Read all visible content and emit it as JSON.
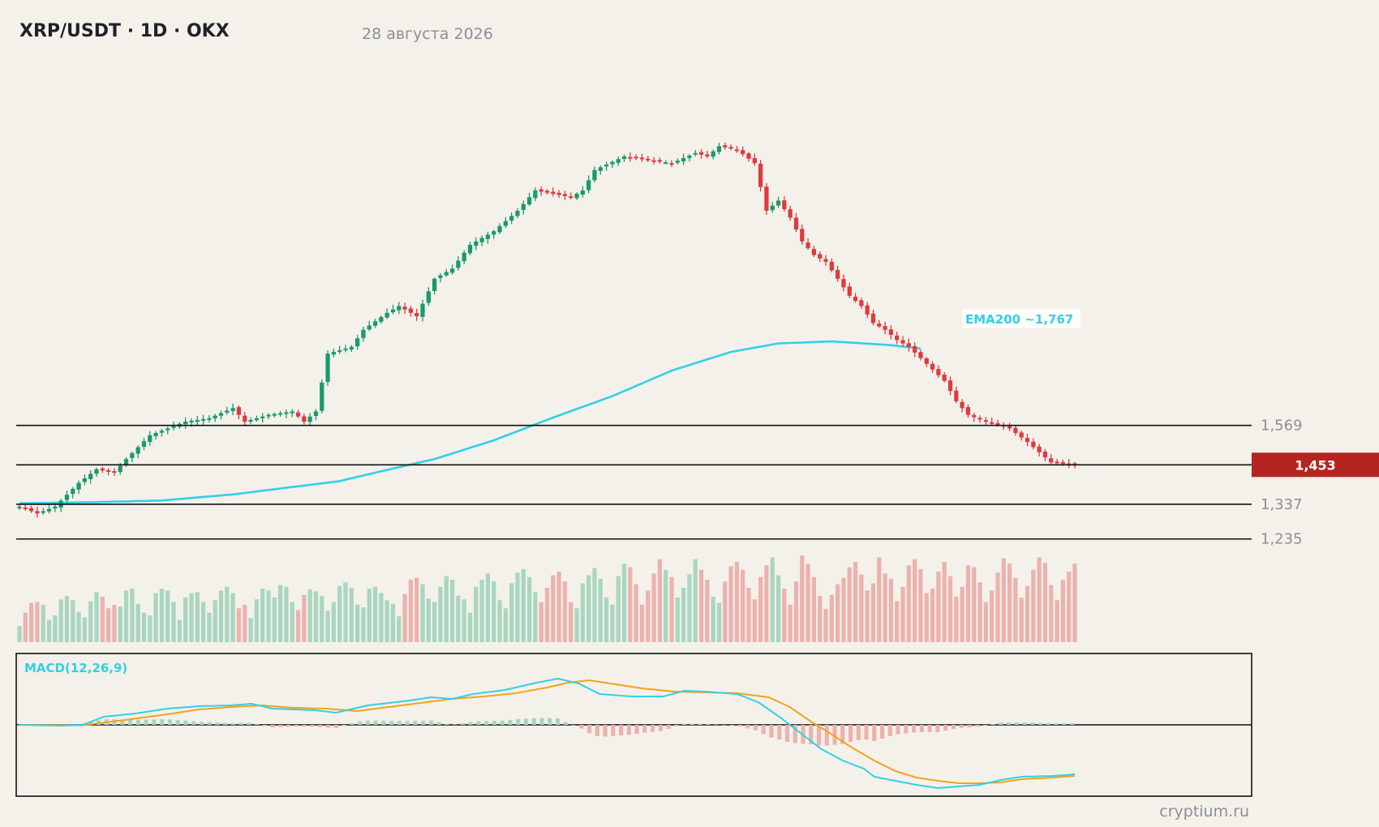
{
  "header": {
    "title": "XRP/USDT · 1D · OKX",
    "date": "28 августа 2026"
  },
  "footer": {
    "watermark": "cryptium.ru"
  },
  "colors": {
    "background": "#f4f1ea",
    "up": "#1a9a6c",
    "down": "#dd3b3f",
    "volume_up": "#a9d6c1",
    "volume_down": "#ecb2ae",
    "ema": "#33cfe6",
    "macd_line": "#33cfe6",
    "signal_line": "#f5a21b",
    "level_line": "#111111",
    "price_badge": "#b5241f"
  },
  "chart_data": {
    "type": "candlestick",
    "symbol": "XRP/USDT",
    "timeframe": "1D",
    "exchange": "OKX",
    "grid": false,
    "y_range": [
      1.17,
      2.51
    ],
    "horizontal_levels": [
      {
        "value": 1.569,
        "label": "1,569"
      },
      {
        "value": 1.453,
        "label": "1,453",
        "current_price": true
      },
      {
        "value": 1.337,
        "label": "1,337"
      },
      {
        "value": 1.235,
        "label": "1,235"
      }
    ],
    "ema": {
      "label": "EMA200 ~1,767",
      "points": [
        [
          0,
          1.34
        ],
        [
          12,
          1.343
        ],
        [
          24,
          1.348
        ],
        [
          36,
          1.366
        ],
        [
          48,
          1.392
        ],
        [
          54,
          1.405
        ],
        [
          60,
          1.43
        ],
        [
          70,
          1.47
        ],
        [
          80,
          1.525
        ],
        [
          90,
          1.592
        ],
        [
          100,
          1.655
        ],
        [
          110,
          1.73
        ],
        [
          120,
          1.785
        ],
        [
          128,
          1.81
        ],
        [
          137,
          1.816
        ],
        [
          147,
          1.805
        ],
        [
          152,
          1.795
        ]
      ]
    },
    "close_path": [
      [
        0,
        1.33
      ],
      [
        3,
        1.31
      ],
      [
        6,
        1.33
      ],
      [
        10,
        1.4
      ],
      [
        13,
        1.44
      ],
      [
        16,
        1.43
      ],
      [
        18,
        1.47
      ],
      [
        22,
        1.54
      ],
      [
        28,
        1.58
      ],
      [
        32,
        1.59
      ],
      [
        36,
        1.62
      ],
      [
        38,
        1.58
      ],
      [
        42,
        1.6
      ],
      [
        46,
        1.61
      ],
      [
        48,
        1.58
      ],
      [
        50,
        1.61
      ],
      [
        52,
        1.78
      ],
      [
        56,
        1.8
      ],
      [
        58,
        1.85
      ],
      [
        62,
        1.9
      ],
      [
        64,
        1.92
      ],
      [
        67,
        1.89
      ],
      [
        70,
        2.0
      ],
      [
        73,
        2.03
      ],
      [
        76,
        2.1
      ],
      [
        80,
        2.14
      ],
      [
        84,
        2.2
      ],
      [
        87,
        2.26
      ],
      [
        90,
        2.25
      ],
      [
        93,
        2.24
      ],
      [
        95,
        2.26
      ],
      [
        97,
        2.32
      ],
      [
        102,
        2.36
      ],
      [
        106,
        2.35
      ],
      [
        110,
        2.34
      ],
      [
        114,
        2.37
      ],
      [
        116,
        2.36
      ],
      [
        118,
        2.39
      ],
      [
        121,
        2.38
      ],
      [
        124,
        2.34
      ],
      [
        126,
        2.2
      ],
      [
        128,
        2.23
      ],
      [
        130,
        2.18
      ],
      [
        132,
        2.11
      ],
      [
        134,
        2.07
      ],
      [
        136,
        2.05
      ],
      [
        138,
        2.0
      ],
      [
        140,
        1.95
      ],
      [
        142,
        1.92
      ],
      [
        144,
        1.87
      ],
      [
        146,
        1.85
      ],
      [
        148,
        1.82
      ],
      [
        150,
        1.8
      ],
      [
        153,
        1.75
      ],
      [
        156,
        1.7
      ],
      [
        158,
        1.64
      ],
      [
        160,
        1.6
      ],
      [
        163,
        1.58
      ],
      [
        165,
        1.57
      ],
      [
        167,
        1.56
      ],
      [
        170,
        1.52
      ],
      [
        174,
        1.46
      ],
      [
        178,
        1.455
      ]
    ],
    "volume_levels": [
      0.18,
      0.33,
      0.44,
      0.45,
      0.42,
      0.25,
      0.3,
      0.48,
      0.52,
      0.47,
      0.34,
      0.28,
      0.46,
      0.56,
      0.51,
      0.38,
      0.42,
      0.4,
      0.58,
      0.6,
      0.43,
      0.33,
      0.3,
      0.55,
      0.6,
      0.58,
      0.45,
      0.25,
      0.5,
      0.55,
      0.56,
      0.45,
      0.33,
      0.47,
      0.58,
      0.62,
      0.55,
      0.38,
      0.42,
      0.27,
      0.48,
      0.6,
      0.58,
      0.5,
      0.64,
      0.62,
      0.45,
      0.36,
      0.53,
      0.59,
      0.57,
      0.52,
      0.35,
      0.45,
      0.63,
      0.67,
      0.61,
      0.42,
      0.39,
      0.6,
      0.62,
      0.55,
      0.47,
      0.43,
      0.29,
      0.54,
      0.7,
      0.72,
      0.65,
      0.49,
      0.45,
      0.62,
      0.74,
      0.7,
      0.52,
      0.48,
      0.33,
      0.62,
      0.7,
      0.77,
      0.68,
      0.47,
      0.38,
      0.66,
      0.78,
      0.82,
      0.73,
      0.56,
      0.45,
      0.61,
      0.75,
      0.79,
      0.68,
      0.45,
      0.38,
      0.66,
      0.75,
      0.83,
      0.71,
      0.5,
      0.42,
      0.74,
      0.88,
      0.84,
      0.65,
      0.42,
      0.58,
      0.77,
      0.93,
      0.81,
      0.73,
      0.5,
      0.61,
      0.76,
      0.93,
      0.81,
      0.7,
      0.51,
      0.44,
      0.68,
      0.85,
      0.9,
      0.81,
      0.61,
      0.48,
      0.73,
      0.86,
      0.95,
      0.75,
      0.6,
      0.42,
      0.68,
      0.97,
      0.88,
      0.73,
      0.52,
      0.37,
      0.53,
      0.65,
      0.72,
      0.84,
      0.9,
      0.76,
      0.58,
      0.66,
      0.95,
      0.77,
      0.71,
      0.46,
      0.62,
      0.86,
      0.93,
      0.82,
      0.55,
      0.6,
      0.79,
      0.9,
      0.74,
      0.51,
      0.62,
      0.86,
      0.84,
      0.67,
      0.45,
      0.58,
      0.78,
      0.94,
      0.88,
      0.72,
      0.5,
      0.63,
      0.81,
      0.95,
      0.89,
      0.64,
      0.47,
      0.7,
      0.79,
      0.88,
      0.74,
      0.52,
      0.64,
      0.9,
      0.98,
      0.73,
      0.55
    ],
    "macd": {
      "label": "MACD(12,26,9)",
      "zero_line": true,
      "macd_points": [
        [
          0,
          0.0
        ],
        [
          8,
          -0.01
        ],
        [
          12,
          0.0
        ],
        [
          16,
          0.1
        ],
        [
          22,
          0.14
        ],
        [
          28,
          0.2
        ],
        [
          34,
          0.23
        ],
        [
          40,
          0.24
        ],
        [
          44,
          0.26
        ],
        [
          48,
          0.2
        ],
        [
          56,
          0.18
        ],
        [
          60,
          0.15
        ],
        [
          66,
          0.24
        ],
        [
          74,
          0.3
        ],
        [
          78,
          0.34
        ],
        [
          82,
          0.32
        ],
        [
          86,
          0.38
        ],
        [
          92,
          0.43
        ],
        [
          98,
          0.52
        ],
        [
          102,
          0.57
        ],
        [
          106,
          0.51
        ],
        [
          110,
          0.38
        ],
        [
          116,
          0.35
        ],
        [
          122,
          0.35
        ],
        [
          126,
          0.42
        ],
        [
          130,
          0.41
        ],
        [
          136,
          0.38
        ],
        [
          140,
          0.28
        ],
        [
          144,
          0.1
        ],
        [
          148,
          -0.1
        ],
        [
          152,
          -0.3
        ],
        [
          156,
          -0.44
        ],
        [
          160,
          -0.54
        ],
        [
          162,
          -0.64
        ],
        [
          166,
          -0.69
        ],
        [
          170,
          -0.74
        ],
        [
          174,
          -0.78
        ],
        [
          178,
          -0.76
        ],
        [
          182,
          -0.74
        ],
        [
          186,
          -0.68
        ],
        [
          190,
          -0.64
        ],
        [
          196,
          -0.63
        ],
        [
          200,
          -0.61
        ]
      ],
      "signal_points": [
        [
          0,
          0.0
        ],
        [
          8,
          -0.005
        ],
        [
          12,
          -0.005
        ],
        [
          20,
          0.06
        ],
        [
          28,
          0.13
        ],
        [
          34,
          0.19
        ],
        [
          40,
          0.22
        ],
        [
          46,
          0.24
        ],
        [
          52,
          0.21
        ],
        [
          58,
          0.2
        ],
        [
          64,
          0.17
        ],
        [
          70,
          0.22
        ],
        [
          76,
          0.27
        ],
        [
          82,
          0.32
        ],
        [
          88,
          0.35
        ],
        [
          94,
          0.39
        ],
        [
          100,
          0.46
        ],
        [
          104,
          0.52
        ],
        [
          108,
          0.55
        ],
        [
          112,
          0.51
        ],
        [
          118,
          0.45
        ],
        [
          124,
          0.41
        ],
        [
          130,
          0.4
        ],
        [
          136,
          0.39
        ],
        [
          142,
          0.34
        ],
        [
          146,
          0.22
        ],
        [
          150,
          0.04
        ],
        [
          154,
          -0.12
        ],
        [
          158,
          -0.29
        ],
        [
          162,
          -0.44
        ],
        [
          166,
          -0.57
        ],
        [
          170,
          -0.65
        ],
        [
          174,
          -0.69
        ],
        [
          178,
          -0.72
        ],
        [
          182,
          -0.72
        ],
        [
          186,
          -0.71
        ],
        [
          190,
          -0.67
        ],
        [
          196,
          -0.65
        ],
        [
          200,
          -0.63
        ]
      ]
    }
  }
}
